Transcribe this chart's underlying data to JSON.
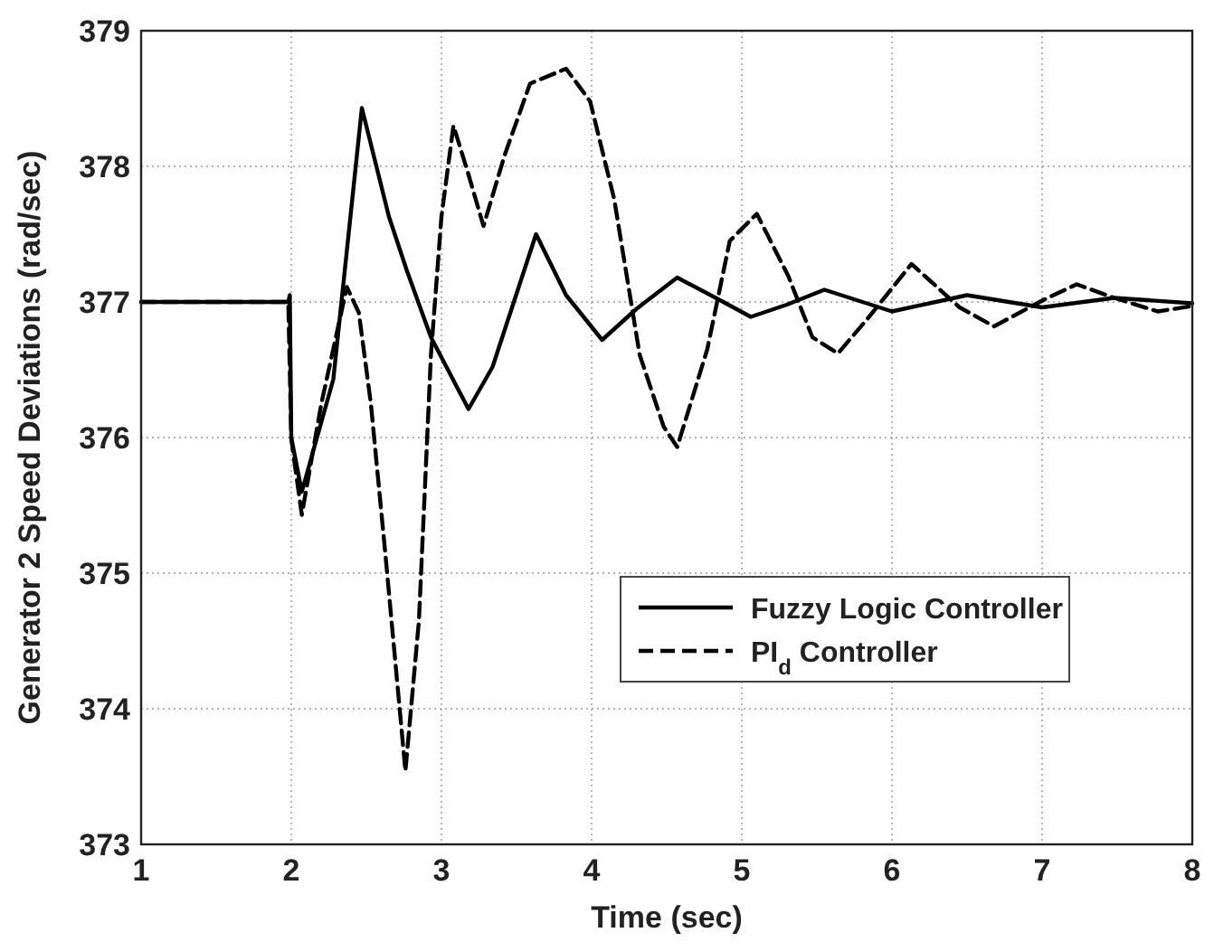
{
  "chart_data": {
    "type": "line",
    "xlabel": "Time (sec)",
    "ylabel": "Generator 2 Speed Deviations (rad/sec)",
    "xlim": [
      1,
      8
    ],
    "xticks": [
      1,
      2,
      3,
      4,
      5,
      6,
      7,
      8
    ],
    "ylim": [
      373,
      379
    ],
    "yticks": [
      373,
      374,
      375,
      376,
      377,
      378,
      379
    ],
    "grid": true,
    "legend": "bottom right",
    "series": [
      {
        "name": "Fuzzy Logic Controller",
        "color": "#000000",
        "line_style": "solid",
        "x": [
          1,
          1.98,
          1.99,
          2.0,
          2.07,
          2.28,
          2.47,
          2.65,
          2.77,
          2.93,
          3.18,
          3.34,
          3.63,
          3.83,
          4.07,
          4.3,
          4.57,
          4.86,
          5.06,
          5.3,
          5.55,
          6.0,
          6.5,
          7.0,
          7.48,
          8.0
        ],
        "values": [
          377,
          377,
          377.05,
          376.0,
          375.6,
          376.43,
          378.43,
          377.63,
          377.23,
          376.74,
          376.21,
          376.52,
          377.5,
          377.05,
          376.72,
          376.95,
          377.18,
          377.01,
          376.89,
          376.98,
          377.09,
          376.93,
          377.05,
          376.96,
          377.03,
          376.99
        ]
      },
      {
        "name": "PI$_{d}$ Controller",
        "color": "#000000",
        "line_style": "dashed",
        "x": [
          1,
          1.98,
          2.0,
          2.07,
          2.2,
          2.37,
          2.45,
          2.53,
          2.63,
          2.76,
          2.85,
          2.93,
          3.0,
          3.08,
          3.18,
          3.28,
          3.42,
          3.59,
          3.83,
          3.99,
          4.15,
          4.32,
          4.48,
          4.57,
          4.77,
          4.92,
          5.1,
          5.31,
          5.47,
          5.64,
          5.84,
          6.13,
          6.45,
          6.68,
          7.0,
          7.23,
          7.48,
          7.77,
          8.0
        ],
        "values": [
          377,
          377,
          375.99,
          375.43,
          376.25,
          377.11,
          376.92,
          376.25,
          375.1,
          373.54,
          374.65,
          376.61,
          377.63,
          378.3,
          377.94,
          377.56,
          378.08,
          378.61,
          378.72,
          378.48,
          377.76,
          376.61,
          376.08,
          375.93,
          376.65,
          377.45,
          377.65,
          377.19,
          376.74,
          376.62,
          376.88,
          377.28,
          376.96,
          376.82,
          377.01,
          377.13,
          377.03,
          376.93,
          376.97
        ]
      }
    ]
  }
}
